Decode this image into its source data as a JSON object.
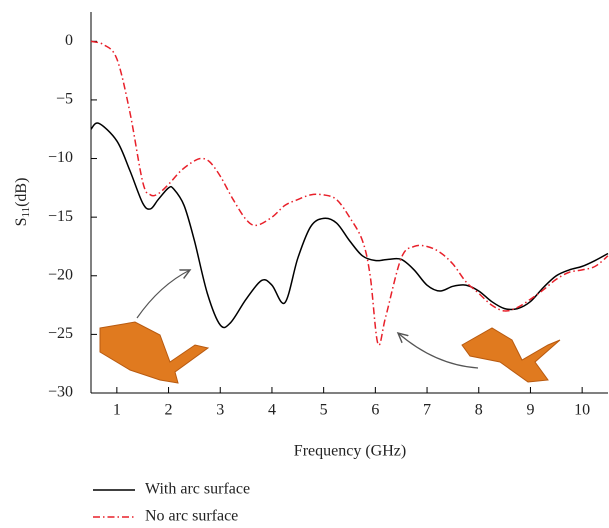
{
  "chart_data": {
    "type": "line",
    "x_label": "Frequency (GHz)",
    "y_label": {
      "base": "S",
      "sub": "11",
      "unit": "(dB)"
    },
    "xlim": [
      0.5,
      10.5
    ],
    "xticks": [
      1,
      2,
      3,
      4,
      5,
      6,
      7,
      8,
      9,
      10
    ],
    "ylim": [
      -30,
      2.5
    ],
    "yticks": [
      {
        "value": 0,
        "label": "0"
      },
      {
        "value": -5,
        "label": "−5"
      },
      {
        "value": -10,
        "label": "−10"
      },
      {
        "value": -15,
        "label": "−15"
      },
      {
        "value": -20,
        "label": "−20"
      },
      {
        "value": -25,
        "label": "−25"
      },
      {
        "value": -30,
        "label": "−30"
      }
    ],
    "series": [
      {
        "name": "With arc surface",
        "color": "#000000",
        "dash": "solid",
        "x": [
          0.5,
          0.65,
          1.0,
          1.25,
          1.5,
          1.65,
          1.8,
          2.0,
          2.1,
          2.3,
          2.5,
          2.75,
          3.0,
          3.2,
          3.5,
          3.8,
          4.0,
          4.25,
          4.5,
          4.75,
          5.0,
          5.25,
          5.5,
          5.75,
          6.0,
          6.25,
          6.5,
          6.75,
          7.0,
          7.25,
          7.5,
          7.75,
          8.0,
          8.25,
          8.5,
          8.75,
          9.0,
          9.25,
          9.5,
          9.75,
          10.0,
          10.25,
          10.5
        ],
        "values": [
          -7.5,
          -7.0,
          -8.5,
          -11,
          -13.8,
          -14.3,
          -13.5,
          -12.5,
          -12.6,
          -14,
          -17,
          -21.5,
          -24.2,
          -24,
          -22,
          -20.4,
          -20.8,
          -22.3,
          -18.5,
          -15.8,
          -15.1,
          -15.5,
          -17,
          -18.3,
          -18.7,
          -18.6,
          -18.6,
          -19.5,
          -20.8,
          -21.3,
          -20.9,
          -20.8,
          -21.3,
          -22.2,
          -22.8,
          -22.8,
          -22.2,
          -21,
          -20,
          -19.5,
          -19.2,
          -18.7,
          -18.1
        ]
      },
      {
        "name": "No arc surface",
        "color": "#e8202a",
        "dash": "dashdot",
        "x": [
          0.5,
          0.75,
          1.0,
          1.25,
          1.5,
          1.65,
          1.8,
          2.0,
          2.25,
          2.5,
          2.65,
          2.8,
          3.0,
          3.25,
          3.5,
          3.7,
          4.0,
          4.25,
          4.5,
          4.75,
          5.0,
          5.25,
          5.5,
          5.75,
          5.9,
          6.05,
          6.2,
          6.5,
          6.75,
          7.0,
          7.25,
          7.5,
          7.75,
          8.0,
          8.25,
          8.5,
          8.75,
          9.0,
          9.25,
          9.5,
          9.75,
          10.0,
          10.25,
          10.5
        ],
        "values": [
          0,
          -0.3,
          -1.5,
          -6,
          -12,
          -13.1,
          -13,
          -12.2,
          -11,
          -10.2,
          -10,
          -10.3,
          -11.5,
          -13.5,
          -15.2,
          -15.7,
          -15,
          -14,
          -13.5,
          -13.1,
          -13.1,
          -13.5,
          -15,
          -17,
          -20,
          -25.8,
          -23.5,
          -18.5,
          -17.5,
          -17.5,
          -18,
          -19,
          -20.5,
          -21.5,
          -22.5,
          -23,
          -22.7,
          -22,
          -21.2,
          -20.3,
          -19.7,
          -19.5,
          -19.2,
          -18.3
        ]
      }
    ]
  }
}
